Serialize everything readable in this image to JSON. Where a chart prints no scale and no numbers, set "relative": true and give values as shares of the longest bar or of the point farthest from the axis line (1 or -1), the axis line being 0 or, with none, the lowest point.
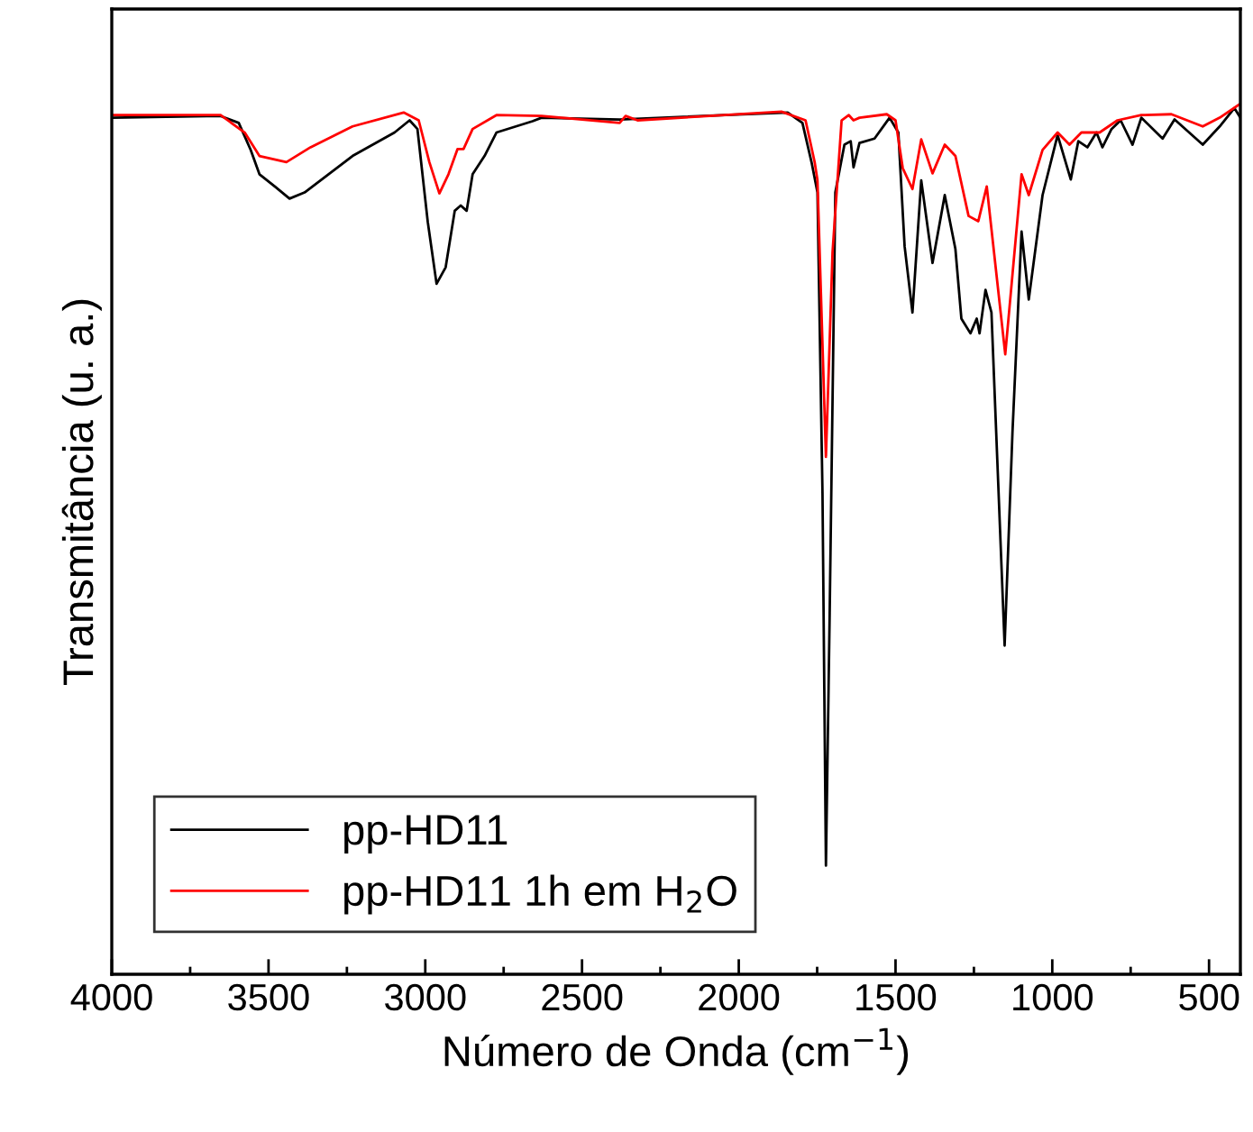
{
  "chart_data": {
    "type": "line",
    "xlabel": "Número de Onda (cm$^{−1}$)",
    "ylabel": "Transmitância (u. a.)",
    "relative": true,
    "xlim": [
      4000,
      400
    ],
    "xticks": [
      4000,
      3500,
      3000,
      2500,
      2000,
      1500,
      1000,
      500
    ],
    "grid": false,
    "legend": "bottom left",
    "marker": "none",
    "line_style": "solid",
    "series": [
      {
        "name": "pp-HD11",
        "color": "#000000",
        "x": [
          3997,
          3653,
          3595,
          3557,
          3529,
          3480,
          3433,
          3385,
          3232,
          3098,
          3050,
          3025,
          2992,
          2964,
          2935,
          2906,
          2887,
          2868,
          2849,
          2811,
          2773,
          2658,
          2629,
          2380,
          1844,
          1797,
          1768,
          1749,
          1733,
          1722,
          1710,
          1692,
          1663,
          1643,
          1634,
          1615,
          1567,
          1519,
          1491,
          1471,
          1446,
          1418,
          1382,
          1343,
          1309,
          1290,
          1261,
          1241,
          1232,
          1213,
          1194,
          1152,
          1127,
          1098,
          1075,
          1031,
          983,
          941,
          917,
          888,
          859,
          840,
          811,
          782,
          744,
          716,
          648,
          610,
          520,
          466,
          419,
          400
        ],
        "values": [
          0.985,
          0.987,
          0.979,
          0.948,
          0.92,
          0.906,
          0.892,
          0.899,
          0.941,
          0.968,
          0.982,
          0.972,
          0.865,
          0.794,
          0.813,
          0.878,
          0.884,
          0.878,
          0.92,
          0.941,
          0.968,
          0.981,
          0.985,
          0.983,
          0.991,
          0.979,
          0.934,
          0.899,
          0.554,
          0.125,
          0.416,
          0.899,
          0.954,
          0.958,
          0.928,
          0.956,
          0.961,
          0.985,
          0.968,
          0.837,
          0.761,
          0.913,
          0.818,
          0.896,
          0.834,
          0.754,
          0.737,
          0.754,
          0.737,
          0.787,
          0.761,
          0.378,
          0.623,
          0.854,
          0.776,
          0.896,
          0.965,
          0.914,
          0.958,
          0.951,
          0.968,
          0.951,
          0.972,
          0.982,
          0.954,
          0.985,
          0.961,
          0.983,
          0.954,
          0.975,
          0.996,
          0.985
        ]
      },
      {
        "name": "pp-HD11 1h em H$_{2}$O",
        "color": "#ff0000",
        "x": [
          3997,
          3653,
          3576,
          3529,
          3443,
          3366,
          3232,
          3069,
          3021,
          2987,
          2955,
          2926,
          2897,
          2878,
          2849,
          2773,
          2629,
          2380,
          2361,
          2323,
          1864,
          1787,
          1758,
          1749,
          1722,
          1701,
          1672,
          1649,
          1634,
          1615,
          1528,
          1500,
          1477,
          1446,
          1418,
          1382,
          1343,
          1309,
          1267,
          1236,
          1209,
          1150,
          1098,
          1075,
          1031,
          983,
          945,
          907,
          849,
          792,
          716,
          620,
          520,
          466,
          405
        ],
        "values": [
          0.988,
          0.988,
          0.968,
          0.941,
          0.934,
          0.951,
          0.975,
          0.991,
          0.982,
          0.934,
          0.898,
          0.92,
          0.949,
          0.949,
          0.972,
          0.988,
          0.987,
          0.979,
          0.987,
          0.982,
          0.992,
          0.982,
          0.934,
          0.913,
          0.595,
          0.83,
          0.982,
          0.988,
          0.982,
          0.985,
          0.989,
          0.982,
          0.927,
          0.903,
          0.96,
          0.921,
          0.954,
          0.941,
          0.872,
          0.866,
          0.906,
          0.713,
          0.92,
          0.896,
          0.948,
          0.968,
          0.954,
          0.968,
          0.968,
          0.982,
          0.988,
          0.989,
          0.975,
          0.985,
          1.0
        ]
      }
    ]
  }
}
